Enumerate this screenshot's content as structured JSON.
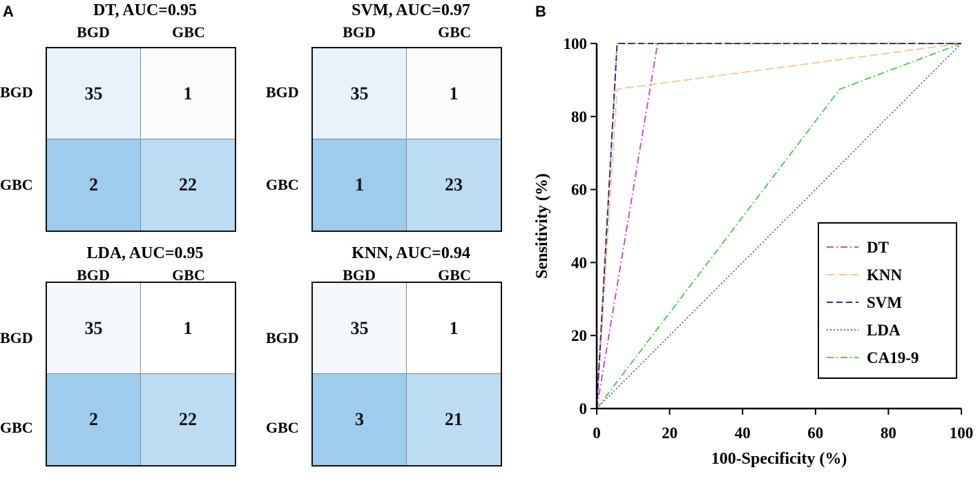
{
  "panels": {
    "a_label": "A",
    "b_label": "B"
  },
  "confusion_matrices": [
    {
      "title": "DT, AUC=0.95",
      "columns": [
        "BGD",
        "GBC"
      ],
      "rows": [
        "BGD",
        "GBC"
      ],
      "values": [
        [
          "35",
          "1"
        ],
        [
          "2",
          "22"
        ]
      ],
      "colors": [
        [
          "#e8f2fb",
          "#f9fbfd"
        ],
        [
          "#9fcbec",
          "#bcdcf4"
        ]
      ]
    },
    {
      "title": "SVM, AUC=0.97",
      "columns": [
        "BGD",
        "GBC"
      ],
      "rows": [
        "BGD",
        "GBC"
      ],
      "values": [
        [
          "35",
          "1"
        ],
        [
          "1",
          "23"
        ]
      ],
      "colors": [
        [
          "#e8f2fb",
          "#f9fbfd"
        ],
        [
          "#9fcbec",
          "#bcdcf4"
        ]
      ]
    },
    {
      "title": "LDA, AUC=0.95",
      "columns": [
        "BGD",
        "GBC"
      ],
      "rows": [
        "BGD",
        "GBC"
      ],
      "values": [
        [
          "35",
          "1"
        ],
        [
          "2",
          "22"
        ]
      ],
      "colors": [
        [
          "#f4f8fc",
          "#ffffff"
        ],
        [
          "#9fcbec",
          "#bcdcf4"
        ]
      ]
    },
    {
      "title": "KNN, AUC=0.94",
      "columns": [
        "BGD",
        "GBC"
      ],
      "rows": [
        "BGD",
        "GBC"
      ],
      "values": [
        [
          "35",
          "1"
        ],
        [
          "3",
          "21"
        ]
      ],
      "colors": [
        [
          "#f4f8fc",
          "#ffffff"
        ],
        [
          "#9fcbec",
          "#bcdcf4"
        ]
      ]
    }
  ],
  "chart_data": {
    "type": "line",
    "title": "",
    "xlabel": "100-Specificity (%)",
    "ylabel": "Sensitivity (%)",
    "xlim": [
      0,
      100
    ],
    "ylim": [
      0,
      100
    ],
    "xticks": [
      0,
      20,
      40,
      60,
      80,
      100
    ],
    "yticks": [
      0,
      20,
      40,
      60,
      80,
      100
    ],
    "legend_position": "bottom-right",
    "series": [
      {
        "name": "DT",
        "color": "#c84fc8",
        "dash": "dash-dot",
        "x": [
          0,
          16.7,
          100
        ],
        "y": [
          0,
          100,
          100
        ]
      },
      {
        "name": "KNN",
        "color": "#f5c89a",
        "dash": "long-dash",
        "x": [
          0,
          5.6,
          100
        ],
        "y": [
          0,
          87.5,
          100
        ]
      },
      {
        "name": "SVM",
        "color": "#2c2f8c",
        "dash": "dash",
        "x": [
          0,
          5.6,
          100
        ],
        "y": [
          0,
          100,
          100
        ]
      },
      {
        "name": "LDA",
        "color": "#c0504d",
        "dash": "dot",
        "x": [
          0,
          5.6,
          100
        ],
        "y": [
          0,
          100,
          100
        ]
      },
      {
        "name": "CA19-9",
        "color": "#5bc85b",
        "dash": "dash-dot",
        "x": [
          0,
          66.7,
          100
        ],
        "y": [
          0,
          87.5,
          100
        ]
      },
      {
        "name": "Reference",
        "color": "#333333",
        "dash": "fine-dot",
        "x": [
          0,
          100
        ],
        "y": [
          0,
          100
        ],
        "in_legend": false
      }
    ]
  }
}
